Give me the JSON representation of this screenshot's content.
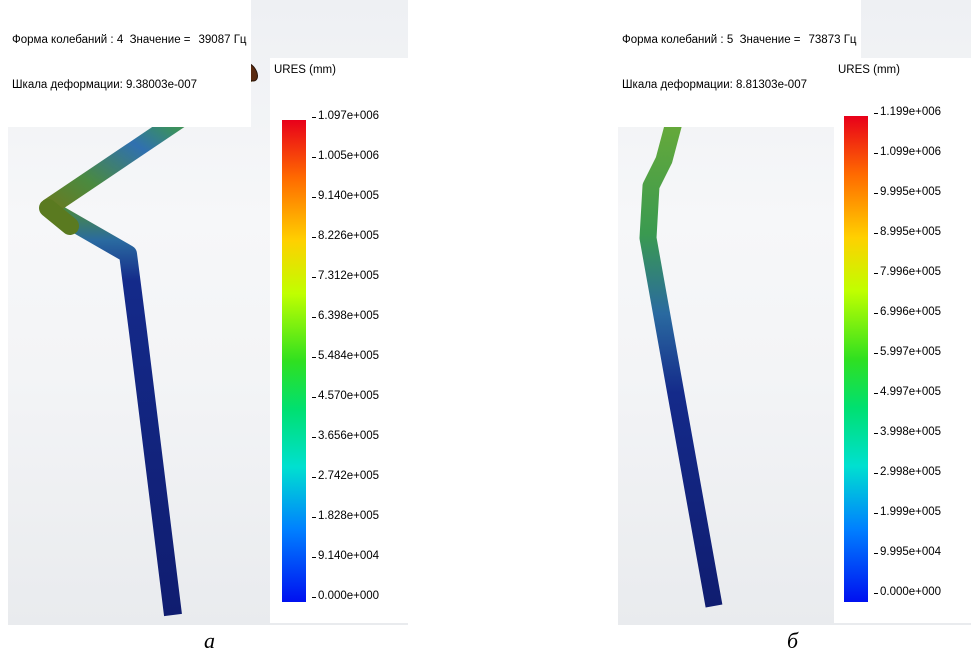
{
  "panel_a": {
    "mode_line": "Форма колебаний : 4  Значение =",
    "mode_value": "39087 Гц",
    "scale_line": "Шкала деформации: 9.38003e-007",
    "legend_title": "URES (mm)",
    "ticks": [
      "1.097e+006",
      "1.005e+006",
      "9.140e+005",
      "8.226e+005",
      "7.312e+005",
      "6.398e+005",
      "5.484e+005",
      "4.570e+005",
      "3.656e+005",
      "2.742e+005",
      "1.828e+005",
      "9.140e+004",
      "0.000e+000"
    ],
    "caption": "а"
  },
  "panel_b": {
    "mode_line": "Форма колебаний : 5  Значение =",
    "mode_value": "73873 Гц",
    "scale_line": "Шкала деформации: 8.81303e-007",
    "legend_title": "URES (mm)",
    "ticks": [
      "1.199e+006",
      "1.099e+006",
      "9.995e+005",
      "8.995e+005",
      "7.996e+005",
      "6.996e+005",
      "5.997e+005",
      "4.997e+005",
      "3.998e+005",
      "2.998e+005",
      "1.999e+005",
      "9.995e+004",
      "0.000e+000"
    ],
    "caption": "б"
  },
  "colors": {
    "max": "#e8001a",
    "mid": "#30e020",
    "min": "#0010f0"
  }
}
